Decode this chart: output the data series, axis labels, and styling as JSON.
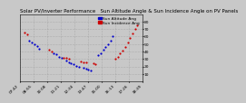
{
  "title": "Solar PV/Inverter Performance   Sun Altitude Angle & Sun Incidence Angle on PV Panels",
  "bg_color": "#c8c8c8",
  "plot_bg_color": "#c8c8c8",
  "grid_color": "#888888",
  "text_color": "#000000",
  "legend_blue_label": "Sun Altitude Ang",
  "legend_red_label": "Sun Incidence Ang",
  "blue_color": "#0000cc",
  "red_color": "#cc0000",
  "ylim": [
    0,
    90
  ],
  "ylabel_ticks": [
    10,
    20,
    30,
    40,
    50,
    60,
    70,
    80
  ],
  "ylabel_labels": [
    "10",
    "20",
    "30",
    "40",
    "50",
    "60",
    "70",
    "80"
  ],
  "blue_x": [
    0.08,
    0.1,
    0.12,
    0.14,
    0.16,
    0.28,
    0.3,
    0.32,
    0.34,
    0.38,
    0.4,
    0.42,
    0.44,
    0.46,
    0.48,
    0.52,
    0.54,
    0.56,
    0.58,
    0.64,
    0.66,
    0.68,
    0.7,
    0.72,
    0.74,
    0.76
  ],
  "blue_y": [
    55,
    52,
    50,
    47,
    44,
    38,
    36,
    33,
    31,
    28,
    26,
    24,
    23,
    21,
    20,
    18,
    17,
    16,
    15,
    35,
    38,
    42,
    46,
    50,
    55,
    60
  ],
  "red_x": [
    0.04,
    0.06,
    0.24,
    0.26,
    0.36,
    0.38,
    0.4,
    0.5,
    0.52,
    0.54,
    0.6,
    0.62,
    0.78,
    0.8,
    0.82,
    0.84,
    0.86,
    0.88,
    0.9,
    0.92,
    0.94,
    0.96
  ],
  "red_y": [
    65,
    63,
    42,
    40,
    32,
    31,
    30,
    27,
    26,
    25,
    24,
    23,
    30,
    33,
    37,
    41,
    46,
    52,
    58,
    64,
    70,
    75
  ],
  "xlim": [
    0,
    1
  ],
  "xtick_positions": [
    0.0,
    0.111,
    0.222,
    0.333,
    0.444,
    0.556,
    0.667,
    0.778,
    0.889,
    1.0
  ],
  "xtick_labels": [
    "07:42",
    "08:55",
    "10:08",
    "11:21",
    "12:34",
    "13:47",
    "15:00",
    "16:13",
    "17:26",
    "18:39"
  ],
  "title_fontsize": 4.0,
  "tick_fontsize": 3.2,
  "legend_fontsize": 3.2,
  "marker_size": 2.5
}
